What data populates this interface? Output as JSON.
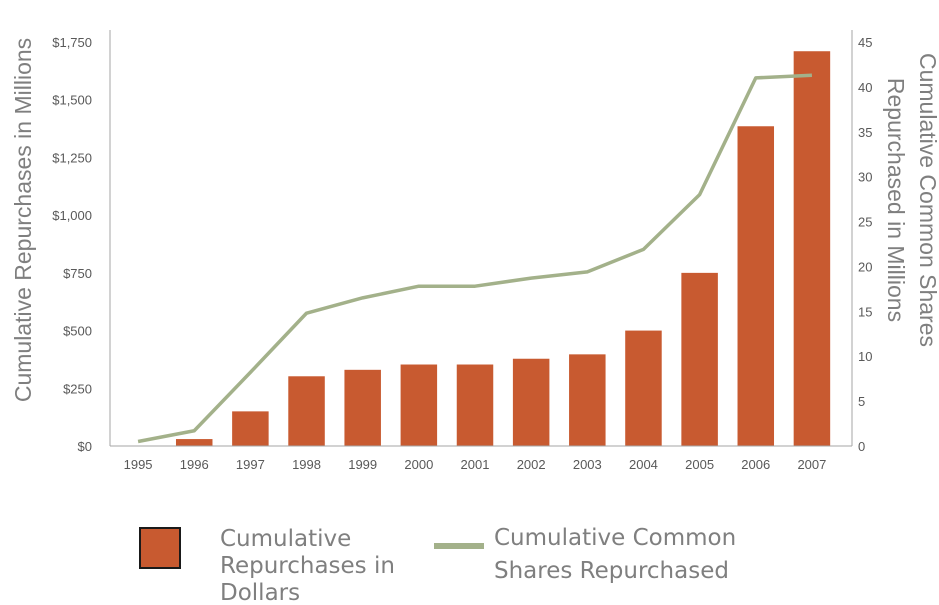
{
  "chart_data": {
    "type": "bar",
    "categories": [
      "1995",
      "1996",
      "1997",
      "1998",
      "1999",
      "2000",
      "2001",
      "2002",
      "2003",
      "2004",
      "2005",
      "2006",
      "2007"
    ],
    "series": [
      {
        "name": "Cumulative Repurchases in Dollars",
        "type": "bar",
        "axis": "left",
        "color": "#c85a30",
        "values": [
          0,
          30,
          150,
          302,
          330,
          353,
          353,
          378,
          397,
          500,
          750,
          1385,
          1710
        ]
      },
      {
        "name": "Cumulative Common Shares Repurchased",
        "type": "line",
        "axis": "right",
        "color": "#a3b18a",
        "values": [
          0.5,
          1.7,
          8.2,
          14.8,
          16.5,
          17.8,
          17.8,
          18.7,
          19.4,
          21.9,
          28.0,
          41.0,
          41.3
        ]
      }
    ],
    "ylabel": "Cumulative Repurchases in Millions",
    "y2label_lines": [
      "Cumulative Common Shares",
      "Repurchased in Millions"
    ],
    "ylim": [
      0,
      1750
    ],
    "y2lim": [
      0,
      45
    ],
    "yticks": [
      "$0",
      "$250",
      "$500",
      "$750",
      "$1,000",
      "$1,250",
      "$1,500",
      "$1,750"
    ],
    "ytick_values": [
      0,
      250,
      500,
      750,
      1000,
      1250,
      1500,
      1750
    ],
    "y2ticks": [
      "0",
      "5",
      "10",
      "15",
      "20",
      "25",
      "30",
      "35",
      "40",
      "45"
    ],
    "y2tick_values": [
      0,
      5,
      10,
      15,
      20,
      25,
      30,
      35,
      40,
      45
    ],
    "grid": false,
    "legend_position": "bottom",
    "legend": [
      {
        "name_lines": [
          "Cumulative",
          "Repurchases in",
          "Dollars"
        ],
        "marker": "bar"
      },
      {
        "name_lines": [
          "Cumulative Common",
          "Shares Repurchased"
        ],
        "marker": "line"
      }
    ]
  }
}
